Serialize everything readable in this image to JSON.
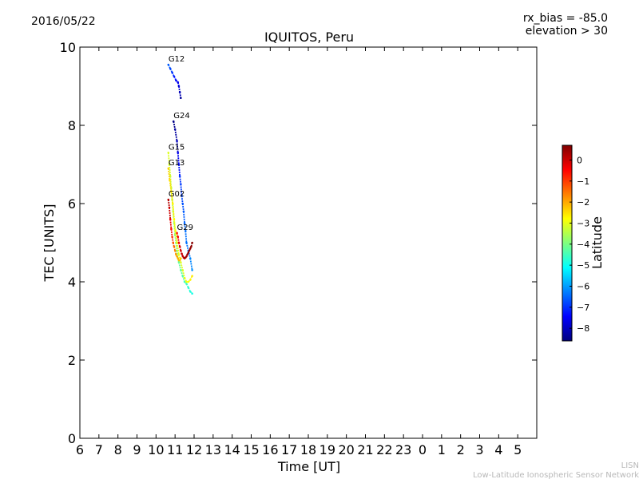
{
  "header": {
    "date": "2016/05/22",
    "rx_bias": "rx_bias = -85.0",
    "elevation": "elevation > 30"
  },
  "footer": {
    "credit_short": "LISN",
    "credit_full": "Low-Latitude Ionospheric Sensor Network"
  },
  "chart_data": {
    "type": "scatter",
    "title": "IQUITOS, Peru",
    "xlabel": "Time [UT]",
    "ylabel": "TEC [UNITS]",
    "ylim": [
      0,
      10
    ],
    "yticks": [
      0,
      2,
      4,
      6,
      8,
      10
    ],
    "xlim_hours_elapsed": [
      0,
      24
    ],
    "xticks": [
      "6",
      "7",
      "8",
      "9",
      "10",
      "11",
      "12",
      "13",
      "14",
      "15",
      "16",
      "17",
      "18",
      "19",
      "20",
      "21",
      "22",
      "23",
      "0",
      "1",
      "2",
      "3",
      "4",
      "5"
    ],
    "grid": false,
    "colorbar": {
      "label": "Latitude",
      "range": [
        -8.6,
        0.7
      ],
      "ticks": [
        0,
        -1,
        -2,
        -3,
        -4,
        -5,
        -6,
        -7,
        -8
      ],
      "colormap": [
        "#00007f",
        "#0000ff",
        "#007fff",
        "#00ffff",
        "#7fff7f",
        "#ffff00",
        "#ff7f00",
        "#ff0000",
        "#7f0000"
      ]
    },
    "series": [
      {
        "name": "G12",
        "x": [
          4.65,
          4.75,
          4.85,
          4.95,
          5.05,
          5.15,
          5.2,
          5.25,
          5.3
        ],
        "y": [
          9.55,
          9.45,
          9.35,
          9.25,
          9.15,
          9.1,
          9.0,
          8.85,
          8.7
        ],
        "lat": [
          -6.6,
          -6.8,
          -7.0,
          -7.2,
          -7.4,
          -7.6,
          -7.8,
          -8.1,
          -8.4
        ]
      },
      {
        "name": "G24",
        "x": [
          4.92,
          5.0,
          5.1,
          5.15,
          5.2,
          5.25,
          5.3,
          5.35,
          5.4,
          5.45,
          5.5,
          5.55,
          5.6,
          5.7,
          5.8,
          5.9
        ],
        "y": [
          8.1,
          7.9,
          7.6,
          7.3,
          7.0,
          6.7,
          6.5,
          6.2,
          6.0,
          5.8,
          5.5,
          5.3,
          5.0,
          4.8,
          4.6,
          4.3
        ],
        "lat": [
          -8.5,
          -8.3,
          -8.0,
          -7.6,
          -7.3,
          -7.0,
          -6.9,
          -6.8,
          -6.7,
          -6.6,
          -6.5,
          -6.4,
          -6.4,
          -6.3,
          -6.2,
          -6.1
        ]
      },
      {
        "name": "G15",
        "x": [
          4.65,
          4.7,
          4.75,
          4.8,
          4.85,
          4.9,
          4.95,
          5.0,
          5.05,
          5.1,
          5.15,
          5.2,
          5.3,
          5.4,
          5.5,
          5.6,
          5.7,
          5.8,
          5.9
        ],
        "y": [
          7.3,
          7.0,
          6.7,
          6.4,
          6.1,
          5.8,
          5.5,
          5.2,
          5.0,
          4.8,
          4.6,
          4.5,
          4.3,
          4.15,
          4.0,
          3.95,
          3.85,
          3.75,
          3.7
        ],
        "lat": [
          -3.1,
          -3.2,
          -3.3,
          -3.4,
          -3.5,
          -3.6,
          -3.7,
          -3.8,
          -3.9,
          -4.0,
          -4.1,
          -4.2,
          -4.3,
          -4.4,
          -4.5,
          -4.6,
          -4.7,
          -4.8,
          -4.9
        ]
      },
      {
        "name": "G13",
        "x": [
          4.65,
          4.72,
          4.8,
          4.88,
          4.95,
          5.02,
          5.1,
          5.2,
          5.3,
          5.4,
          5.5,
          5.6,
          5.7,
          5.8,
          5.9
        ],
        "y": [
          6.9,
          6.6,
          6.3,
          6.0,
          5.6,
          5.3,
          5.0,
          4.7,
          4.5,
          4.3,
          4.1,
          4.0,
          4.0,
          4.05,
          4.15
        ],
        "lat": [
          -2.4,
          -2.5,
          -2.6,
          -2.7,
          -2.8,
          -2.9,
          -3.0,
          -3.0,
          -3.1,
          -3.1,
          -3.0,
          -2.9,
          -2.8,
          -2.7,
          -2.6
        ]
      },
      {
        "name": "G02",
        "x": [
          4.65,
          4.7,
          4.75,
          4.8,
          4.85,
          4.9,
          4.95,
          5.0,
          5.05,
          5.1,
          5.15,
          5.2,
          5.25,
          5.3
        ],
        "y": [
          6.1,
          5.9,
          5.6,
          5.35,
          5.15,
          5.0,
          4.9,
          4.8,
          4.7,
          4.65,
          4.6,
          4.55,
          4.55,
          4.6
        ],
        "lat": [
          0.2,
          0.0,
          -0.3,
          -0.6,
          -0.9,
          -1.2,
          -1.5,
          -1.7,
          -1.9,
          -2.0,
          -2.1,
          -2.2,
          -2.2,
          -2.3
        ]
      },
      {
        "name": "G29",
        "x": [
          5.1,
          5.15,
          5.2,
          5.25,
          5.3,
          5.35,
          5.4,
          5.45,
          5.5,
          5.55,
          5.6,
          5.65,
          5.7,
          5.75,
          5.8,
          5.85,
          5.9
        ],
        "y": [
          5.25,
          5.15,
          5.0,
          4.9,
          4.8,
          4.72,
          4.66,
          4.62,
          4.6,
          4.62,
          4.65,
          4.7,
          4.75,
          4.8,
          4.85,
          4.9,
          5.0
        ],
        "lat": [
          -0.6,
          -0.4,
          -0.3,
          -0.2,
          -0.1,
          0.0,
          0.1,
          0.2,
          0.3,
          0.3,
          0.4,
          0.4,
          0.5,
          0.5,
          0.5,
          0.6,
          0.6
        ]
      }
    ]
  }
}
